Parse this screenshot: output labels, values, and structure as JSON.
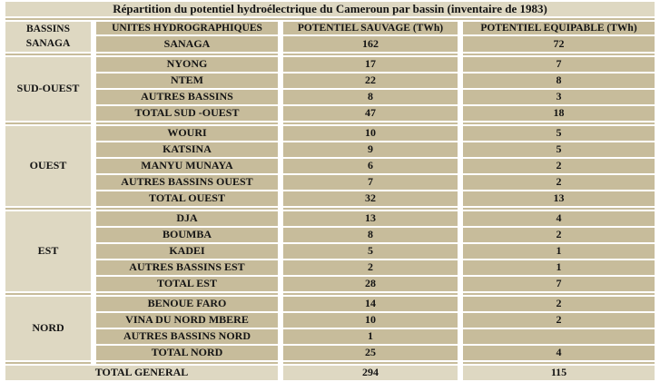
{
  "table": {
    "title": "Répartition du potentiel hydroélectrique du Cameroun par bassin (inventaire de 1983)",
    "headers": {
      "bassins": "BASSINS",
      "unites": "UNITES HYDROGRAPHIQUES",
      "sauvage": "POTENTIEL SAUVAGE (TWh)",
      "equipable": "POTENTIEL EQUIPABLE (TWh)"
    },
    "groups": [
      {
        "basin": "SANAGA",
        "rows": [
          {
            "unit": "SANAGA",
            "sauvage": "162",
            "equipable": "72"
          }
        ]
      },
      {
        "basin": "SUD-OUEST",
        "rows": [
          {
            "unit": "NYONG",
            "sauvage": "17",
            "equipable": "7"
          },
          {
            "unit": "NTEM",
            "sauvage": "22",
            "equipable": "8"
          },
          {
            "unit": "AUTRES BASSINS",
            "sauvage": "8",
            "equipable": "3"
          },
          {
            "unit": "TOTAL SUD -OUEST",
            "sauvage": "47",
            "equipable": "18"
          }
        ]
      },
      {
        "basin": "OUEST",
        "rows": [
          {
            "unit": "WOURI",
            "sauvage": "10",
            "equipable": "5"
          },
          {
            "unit": "KATSINA",
            "sauvage": "9",
            "equipable": "5"
          },
          {
            "unit": "MANYU MUNAYA",
            "sauvage": "6",
            "equipable": "2"
          },
          {
            "unit": "AUTRES BASSINS OUEST",
            "sauvage": "7",
            "equipable": "2"
          },
          {
            "unit": "TOTAL OUEST",
            "sauvage": "32",
            "equipable": "13"
          }
        ]
      },
      {
        "basin": "EST",
        "rows": [
          {
            "unit": "DJA",
            "sauvage": "13",
            "equipable": "4"
          },
          {
            "unit": "BOUMBA",
            "sauvage": "8",
            "equipable": "2"
          },
          {
            "unit": "KADEI",
            "sauvage": "5",
            "equipable": "1"
          },
          {
            "unit": "AUTRES BASSINS EST",
            "sauvage": "2",
            "equipable": "1"
          },
          {
            "unit": "TOTAL EST",
            "sauvage": "28",
            "equipable": "7"
          }
        ]
      },
      {
        "basin": "NORD",
        "rows": [
          {
            "unit": "BENOUE FARO",
            "sauvage": "14",
            "equipable": "2"
          },
          {
            "unit": "VINA DU NORD MBERE",
            "sauvage": "10",
            "equipable": "2"
          },
          {
            "unit": "AUTRES BASSINS NORD",
            "sauvage": "1",
            "equipable": ""
          },
          {
            "unit": "TOTAL NORD",
            "sauvage": "25",
            "equipable": "4"
          }
        ]
      }
    ],
    "total_row": {
      "label": "TOTAL GENERAL",
      "sauvage": "294",
      "equipable": "115"
    }
  },
  "colors": {
    "cell_dark": "#C7BC9B",
    "cell_light": "#DED8C2",
    "grid_white": "#FFFFFF",
    "text": "#141414"
  }
}
